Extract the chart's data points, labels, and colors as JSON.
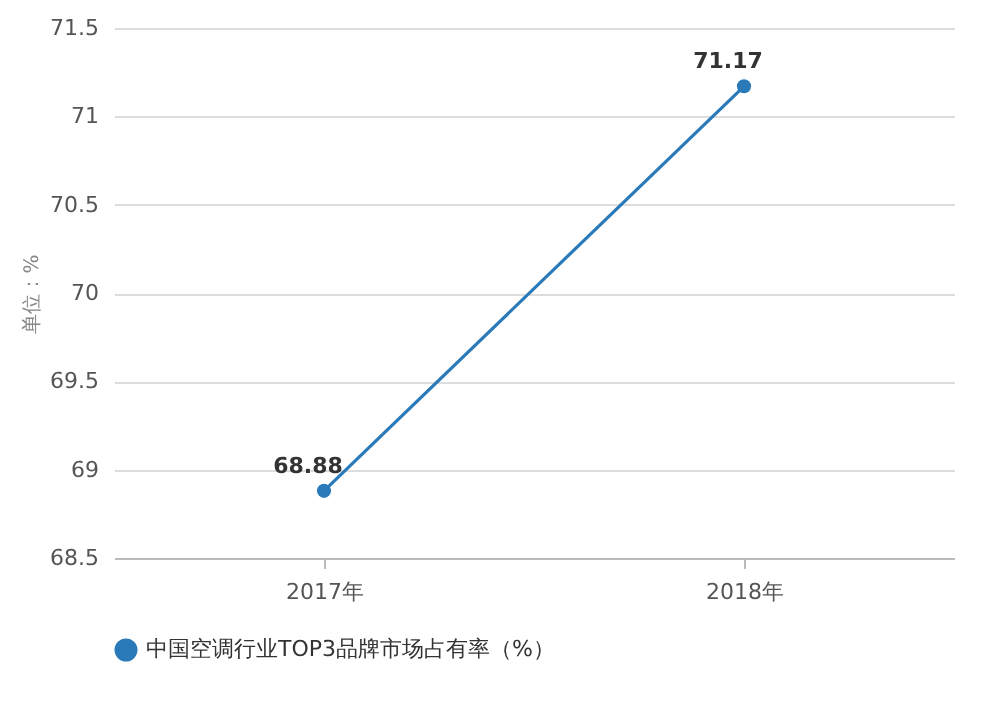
{
  "chart_data": {
    "type": "line",
    "ylabel": "单位：%",
    "categories": [
      "2017年",
      "2018年"
    ],
    "series": [
      {
        "name": "中国空调行业TOP3品牌市场占有率（%）",
        "color": "#2a7ab9",
        "values": [
          68.88,
          71.17
        ]
      }
    ],
    "ylim": [
      68.5,
      71.5
    ],
    "yticks": [
      68.5,
      69,
      69.5,
      70,
      70.5,
      71,
      71.5
    ],
    "grid": "y",
    "legend": "bottom",
    "marker": "circle",
    "data_labels": true
  }
}
